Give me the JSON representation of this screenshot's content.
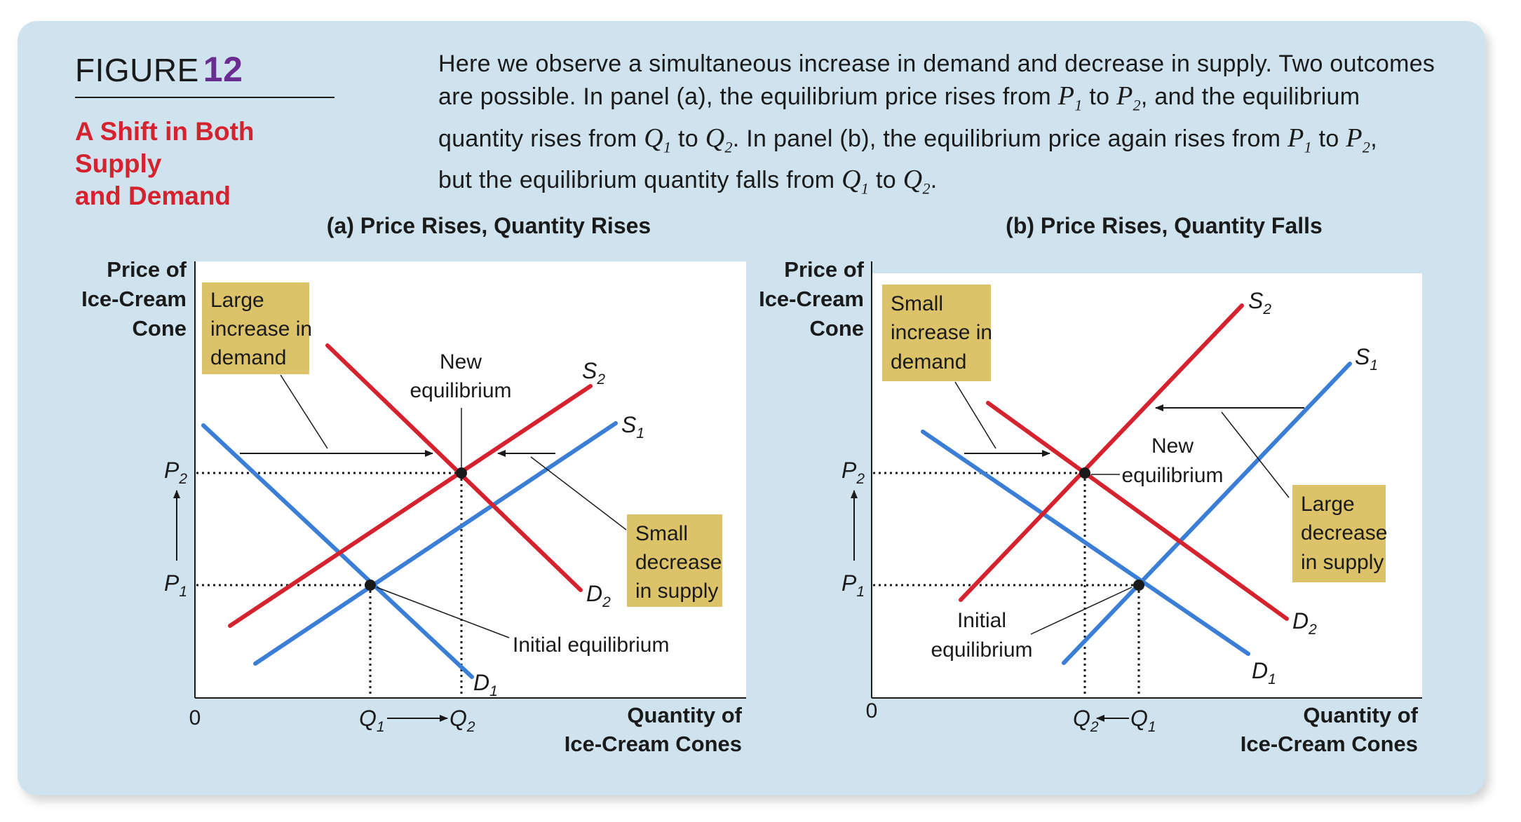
{
  "figure": {
    "label": "FIGURE",
    "number": "12",
    "subtitle_line1": "A Shift in Both Supply",
    "subtitle_line2": "and Demand"
  },
  "caption": {
    "lines": [
      [
        {
          "t": "Here we observe a simultaneous increase in demand and decrease in supply. Two outcomes"
        }
      ],
      [
        {
          "t": "are possible. In panel (a), the equilibrium price rises from "
        },
        {
          "v": "P",
          "s": "1"
        },
        {
          "t": " to "
        },
        {
          "v": "P",
          "s": "2"
        },
        {
          "t": ", and the equilibrium"
        }
      ],
      [
        {
          "t": "quantity rises from "
        },
        {
          "v": "Q",
          "s": "1"
        },
        {
          "t": " to "
        },
        {
          "v": "Q",
          "s": "2"
        },
        {
          "t": ". In panel (b), the equilibrium price again rises from "
        },
        {
          "v": "P",
          "s": "1"
        },
        {
          "t": " to "
        },
        {
          "v": "P",
          "s": "2"
        },
        {
          "t": ","
        }
      ],
      [
        {
          "t": "but the equilibrium quantity falls from "
        },
        {
          "v": "Q",
          "s": "1"
        },
        {
          "t": " to "
        },
        {
          "v": "Q",
          "s": "2"
        },
        {
          "t": "."
        }
      ]
    ]
  },
  "colors": {
    "background": "#cfe3ef",
    "demand_line": "#3a7fd5",
    "supply_line": "#d4232e",
    "annotation_box": "#dcc36a",
    "accent_purple": "#6a2c91"
  },
  "panels": [
    {
      "id": "a",
      "title": "(a) Price Rises, Quantity Rises",
      "y_axis_label": [
        "Price of",
        "Ice-Cream",
        "Cone"
      ],
      "x_axis_label": [
        "Quantity of",
        "Ice-Cream Cones"
      ],
      "origin_label": "0",
      "price_labels": [
        {
          "v": "P",
          "s": "2"
        },
        {
          "v": "P",
          "s": "1"
        }
      ],
      "quantity_labels": [
        {
          "v": "Q",
          "s": "1"
        },
        {
          "v": "Q",
          "s": "2"
        }
      ],
      "curve_labels": [
        {
          "v": "S",
          "s": "2"
        },
        {
          "v": "S",
          "s": "1"
        },
        {
          "v": "D",
          "s": "2"
        },
        {
          "v": "D",
          "s": "1"
        }
      ],
      "annotations": {
        "demand_box": [
          "Large",
          "increase in",
          "demand"
        ],
        "supply_box": [
          "Small",
          "decrease",
          "in supply"
        ],
        "new_eq": [
          "New",
          "equilibrium"
        ],
        "initial_eq": [
          "Initial equilibrium"
        ]
      }
    },
    {
      "id": "b",
      "title": "(b) Price Rises, Quantity Falls",
      "y_axis_label": [
        "Price of",
        "Ice-Cream",
        "Cone"
      ],
      "x_axis_label": [
        "Quantity of",
        "Ice-Cream Cones"
      ],
      "origin_label": "0",
      "price_labels": [
        {
          "v": "P",
          "s": "2"
        },
        {
          "v": "P",
          "s": "1"
        }
      ],
      "quantity_labels": [
        {
          "v": "Q",
          "s": "2"
        },
        {
          "v": "Q",
          "s": "1"
        }
      ],
      "curve_labels": [
        {
          "v": "S",
          "s": "2"
        },
        {
          "v": "S",
          "s": "1"
        },
        {
          "v": "D",
          "s": "2"
        },
        {
          "v": "D",
          "s": "1"
        }
      ],
      "annotations": {
        "demand_box": [
          "Small",
          "increase in",
          "demand"
        ],
        "supply_box": [
          "Large",
          "decrease",
          "in supply"
        ],
        "new_eq": [
          "New",
          "equilibrium"
        ],
        "initial_eq": [
          "Initial",
          "equilibrium"
        ]
      }
    }
  ]
}
